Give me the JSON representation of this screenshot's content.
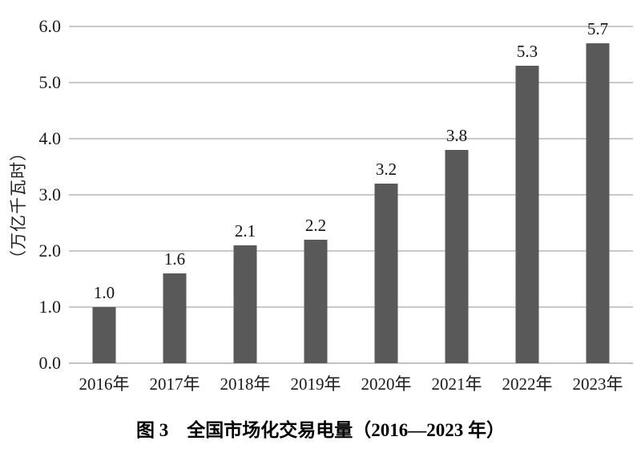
{
  "figure": {
    "caption": "图 3　全国市场化交易电量（2016—2023 年）"
  },
  "chart_data": {
    "type": "bar",
    "title": "图 3 全国市场化交易电量（2016—2023 年）",
    "ylabel": "（万亿千瓦时）",
    "xlabel": "",
    "categories": [
      "2016年",
      "2017年",
      "2018年",
      "2019年",
      "2020年",
      "2021年",
      "2022年",
      "2023年"
    ],
    "values": [
      1.0,
      1.6,
      2.1,
      2.2,
      3.2,
      3.8,
      5.3,
      5.7
    ],
    "data_labels": [
      "1.0",
      "1.6",
      "2.1",
      "2.2",
      "3.2",
      "3.8",
      "5.3",
      "5.7"
    ],
    "yticks": [
      "0.0",
      "1.0",
      "2.0",
      "3.0",
      "4.0",
      "5.0",
      "6.0"
    ],
    "ylim": [
      0,
      6.0
    ],
    "grid": true,
    "legend": "none",
    "colors": {
      "bar": "#595959",
      "gridline": "#c9c9c9",
      "axis_line": "#c2c2c2",
      "text": "#111111",
      "background": "#ffffff"
    }
  }
}
